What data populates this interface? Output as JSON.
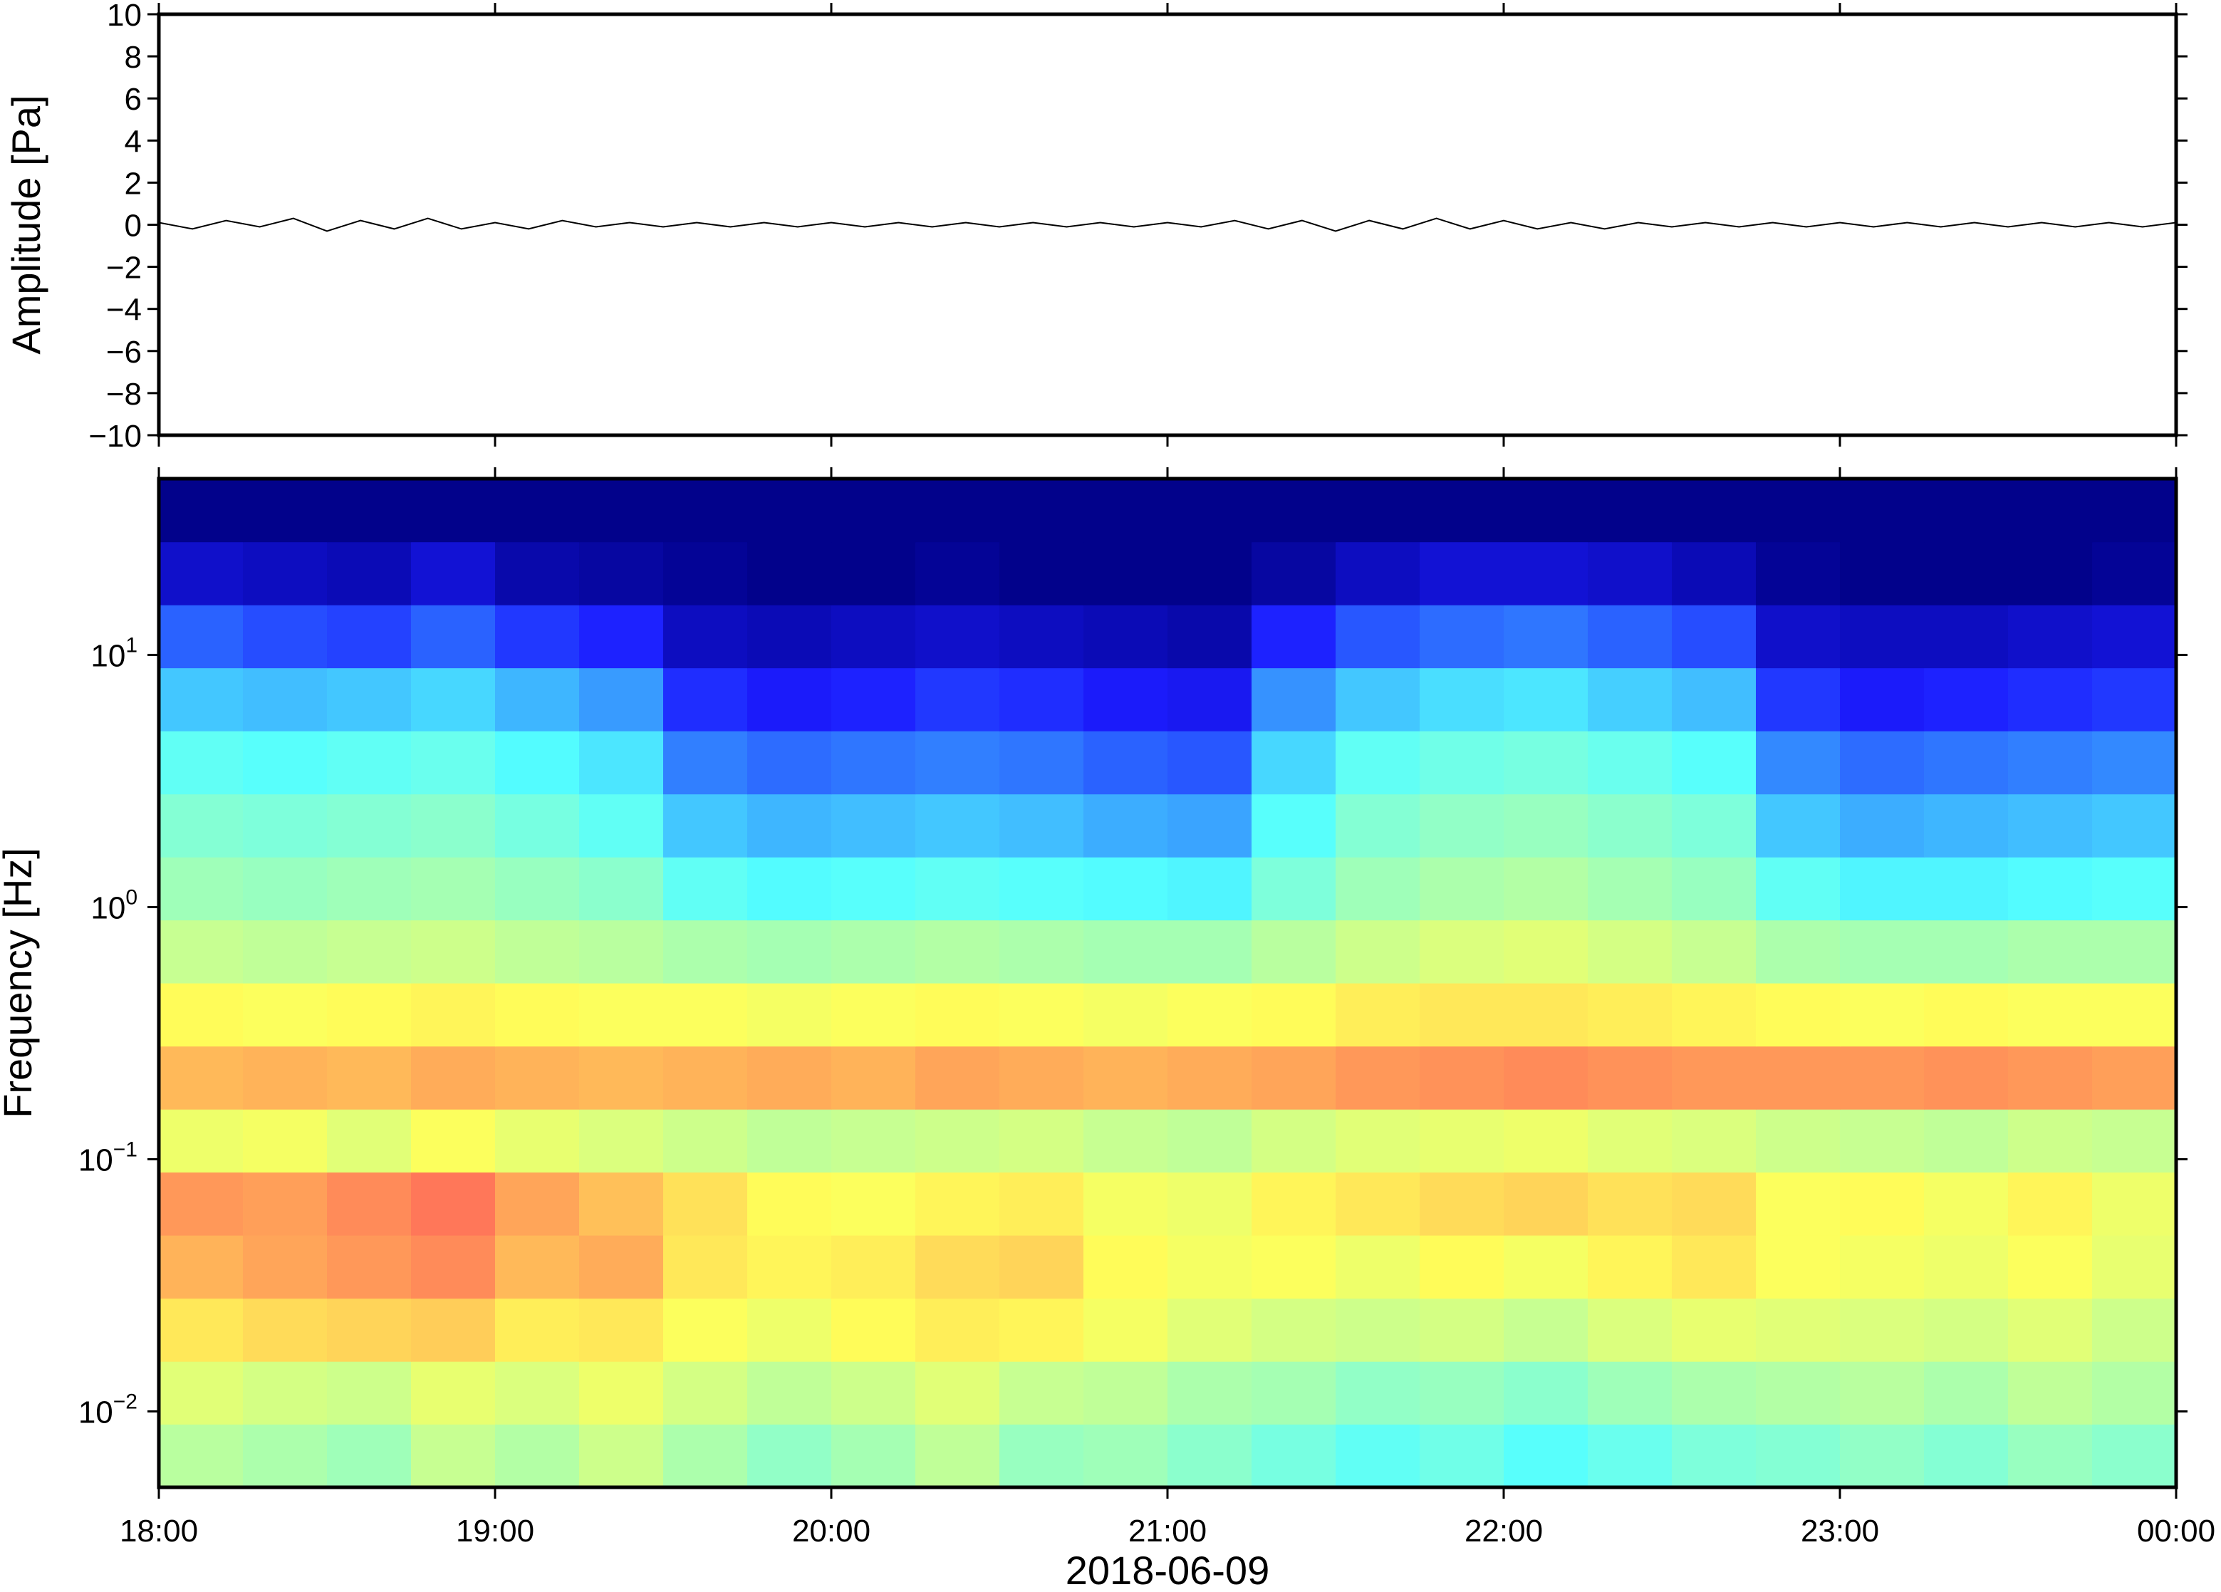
{
  "chart_data": [
    {
      "type": "line",
      "ylabel": "Amplitude [Pa]",
      "x": [
        18.0,
        18.1,
        18.2,
        18.3,
        18.4,
        18.5,
        18.6,
        18.7,
        18.8,
        18.9,
        19.0,
        19.1,
        19.2,
        19.3,
        19.4,
        19.5,
        19.6,
        19.7,
        19.8,
        19.9,
        20.0,
        20.1,
        20.2,
        20.3,
        20.4,
        20.5,
        20.6,
        20.7,
        20.8,
        20.9,
        21.0,
        21.1,
        21.2,
        21.3,
        21.4,
        21.5,
        21.6,
        21.7,
        21.8,
        21.9,
        22.0,
        22.1,
        22.2,
        22.3,
        22.4,
        22.5,
        22.6,
        22.7,
        22.8,
        22.9,
        23.0,
        23.1,
        23.2,
        23.3,
        23.4,
        23.5,
        23.6,
        23.7,
        23.8,
        23.9,
        24.0
      ],
      "series": [
        {
          "color": "#000000",
          "values": [
            0.1,
            -0.2,
            0.2,
            -0.1,
            0.3,
            -0.3,
            0.2,
            -0.2,
            0.3,
            -0.2,
            0.1,
            -0.2,
            0.2,
            -0.1,
            0.1,
            -0.1,
            0.1,
            -0.1,
            0.1,
            -0.1,
            0.1,
            -0.1,
            0.1,
            -0.1,
            0.1,
            -0.1,
            0.1,
            -0.1,
            0.1,
            -0.1,
            0.1,
            -0.1,
            0.2,
            -0.2,
            0.2,
            -0.3,
            0.2,
            -0.2,
            0.3,
            -0.2,
            0.2,
            -0.2,
            0.1,
            -0.2,
            0.1,
            -0.1,
            0.1,
            -0.1,
            0.1,
            -0.1,
            0.1,
            -0.1,
            0.1,
            -0.1,
            0.1,
            -0.1,
            0.1,
            -0.1,
            0.1,
            -0.1,
            0.1
          ]
        }
      ],
      "xlim": [
        18,
        24
      ],
      "xticks": [
        18,
        19,
        20,
        21,
        22,
        23,
        24
      ],
      "ylim": [
        -10,
        10
      ],
      "yticks": [
        {
          "value": -10,
          "label": "−10"
        },
        {
          "value": -8,
          "label": "−8"
        },
        {
          "value": -6,
          "label": "−6"
        },
        {
          "value": -4,
          "label": "−4"
        },
        {
          "value": -2,
          "label": "−2"
        },
        0,
        2,
        4,
        6,
        8,
        10
      ]
    },
    {
      "type": "heatmap",
      "ylabel": "Frequency [Hz]",
      "xlabel": "2018-06-09",
      "colormap": "jet",
      "zlim": [
        0,
        10
      ],
      "log_y": true,
      "x_bins": [
        18,
        18.25,
        18.5,
        18.75,
        19,
        19.25,
        19.5,
        19.75,
        20,
        20.25,
        20.5,
        20.75,
        21,
        21.25,
        21.5,
        21.75,
        22,
        22.25,
        22.5,
        22.75,
        23,
        23.25,
        23.5,
        23.75,
        24
      ],
      "y_bins": [
        0.005,
        0.0089,
        0.0158,
        0.0281,
        0.05,
        0.0889,
        0.158,
        0.281,
        0.5,
        0.889,
        1.58,
        2.81,
        5,
        8.89,
        15.8,
        28.1,
        50
      ],
      "z": [
        [
          5.2,
          5.0,
          4.8,
          5.4,
          5.1,
          5.5,
          5.0,
          4.6,
          4.9,
          5.3,
          4.7,
          4.8,
          4.5,
          4.2,
          3.9,
          4.1,
          3.8,
          4.0,
          4.3,
          4.4,
          4.6,
          4.4,
          4.7,
          4.5
        ],
        [
          5.8,
          5.6,
          5.5,
          5.9,
          5.7,
          6.0,
          5.6,
          5.3,
          5.5,
          5.8,
          5.4,
          5.3,
          5.0,
          4.9,
          4.6,
          4.7,
          4.5,
          4.8,
          5.0,
          5.1,
          5.2,
          5.0,
          5.3,
          5.1
        ],
        [
          6.6,
          6.8,
          6.9,
          7.0,
          6.5,
          6.6,
          6.2,
          6.0,
          6.3,
          6.5,
          6.4,
          6.1,
          5.8,
          5.6,
          5.5,
          5.6,
          5.4,
          5.7,
          5.9,
          5.8,
          5.7,
          5.6,
          5.8,
          5.5
        ],
        [
          7.4,
          7.6,
          7.8,
          8.0,
          7.3,
          7.5,
          6.6,
          6.4,
          6.5,
          6.8,
          6.9,
          6.3,
          6.1,
          6.2,
          6.0,
          6.3,
          6.1,
          6.4,
          6.6,
          6.2,
          6.1,
          6.0,
          6.2,
          5.9
        ],
        [
          7.8,
          7.7,
          8.0,
          8.3,
          7.6,
          7.2,
          6.7,
          6.3,
          6.2,
          6.4,
          6.5,
          6.1,
          6.0,
          6.4,
          6.6,
          6.8,
          6.9,
          6.7,
          6.8,
          6.2,
          6.3,
          6.1,
          6.4,
          6.0
        ],
        [
          6.0,
          6.1,
          5.8,
          6.2,
          5.9,
          5.7,
          5.5,
          5.3,
          5.4,
          5.5,
          5.6,
          5.4,
          5.3,
          5.6,
          5.8,
          5.9,
          6.0,
          5.8,
          5.7,
          5.5,
          5.4,
          5.3,
          5.5,
          5.4
        ],
        [
          7.3,
          7.4,
          7.3,
          7.5,
          7.4,
          7.3,
          7.4,
          7.5,
          7.4,
          7.6,
          7.5,
          7.4,
          7.5,
          7.6,
          7.8,
          7.9,
          8.0,
          7.9,
          7.8,
          7.8,
          7.8,
          7.9,
          7.8,
          7.7
        ],
        [
          6.3,
          6.2,
          6.3,
          6.4,
          6.3,
          6.2,
          6.2,
          6.1,
          6.2,
          6.3,
          6.2,
          6.1,
          6.2,
          6.3,
          6.5,
          6.6,
          6.6,
          6.5,
          6.4,
          6.3,
          6.2,
          6.3,
          6.2,
          6.2
        ],
        [
          5.4,
          5.3,
          5.4,
          5.5,
          5.3,
          5.2,
          5.0,
          4.9,
          5.0,
          5.1,
          5.0,
          4.9,
          4.9,
          5.2,
          5.5,
          5.7,
          5.8,
          5.6,
          5.4,
          5.0,
          4.9,
          4.9,
          5.0,
          5.0
        ],
        [
          4.8,
          4.7,
          4.8,
          4.9,
          4.7,
          4.5,
          3.9,
          3.7,
          3.8,
          3.9,
          3.8,
          3.7,
          3.6,
          4.3,
          4.8,
          5.0,
          5.1,
          4.9,
          4.7,
          3.9,
          3.6,
          3.6,
          3.7,
          3.8
        ],
        [
          4.4,
          4.3,
          4.4,
          4.5,
          4.2,
          3.9,
          3.0,
          2.8,
          2.9,
          3.0,
          2.9,
          2.7,
          2.6,
          3.8,
          4.4,
          4.6,
          4.7,
          4.5,
          4.3,
          3.0,
          2.7,
          2.8,
          2.9,
          3.0
        ],
        [
          3.9,
          3.8,
          3.9,
          4.0,
          3.7,
          3.4,
          2.2,
          2.0,
          2.1,
          2.2,
          2.1,
          1.9,
          1.8,
          3.2,
          3.9,
          4.1,
          4.2,
          4.0,
          3.8,
          2.3,
          2.0,
          2.1,
          2.2,
          2.3
        ],
        [
          3.0,
          2.9,
          3.0,
          3.2,
          2.8,
          2.5,
          1.4,
          1.2,
          1.3,
          1.5,
          1.4,
          1.2,
          1.1,
          2.4,
          3.0,
          3.3,
          3.4,
          3.1,
          2.9,
          1.5,
          1.2,
          1.3,
          1.4,
          1.5
        ],
        [
          1.9,
          1.7,
          1.6,
          1.9,
          1.5,
          1.3,
          0.6,
          0.5,
          0.6,
          0.7,
          0.6,
          0.5,
          0.4,
          1.3,
          1.8,
          2.0,
          2.1,
          1.9,
          1.7,
          0.7,
          0.6,
          0.6,
          0.7,
          0.8
        ],
        [
          0.7,
          0.6,
          0.5,
          0.8,
          0.4,
          0.3,
          0.2,
          0.1,
          0.1,
          0.2,
          0.1,
          0.1,
          0.1,
          0.3,
          0.6,
          0.8,
          0.8,
          0.7,
          0.5,
          0.2,
          0.1,
          0.1,
          0.1,
          0.2
        ],
        [
          0.1,
          0.1,
          0.1,
          0.1,
          0.1,
          0.1,
          0.1,
          0.1,
          0.1,
          0.1,
          0.1,
          0.1,
          0.1,
          0.1,
          0.1,
          0.1,
          0.1,
          0.1,
          0.1,
          0.1,
          0.1,
          0.1,
          0.1,
          0.1
        ]
      ],
      "xlim": [
        18,
        24
      ],
      "xticks": [
        {
          "value": 18,
          "label": "18:00"
        },
        {
          "value": 19,
          "label": "19:00"
        },
        {
          "value": 20,
          "label": "20:00"
        },
        {
          "value": 21,
          "label": "21:00"
        },
        {
          "value": 22,
          "label": "22:00"
        },
        {
          "value": 23,
          "label": "23:00"
        },
        {
          "value": 24,
          "label": "00:00"
        }
      ],
      "ylim": [
        0.005,
        50
      ],
      "yticks": [
        {
          "value": 0.01,
          "label": "10",
          "exponent": "−2"
        },
        {
          "value": 0.1,
          "label": "10",
          "exponent": "−1"
        },
        {
          "value": 1,
          "label": "10",
          "exponent": "0"
        },
        {
          "value": 10,
          "label": "10",
          "exponent": "1"
        }
      ]
    }
  ]
}
